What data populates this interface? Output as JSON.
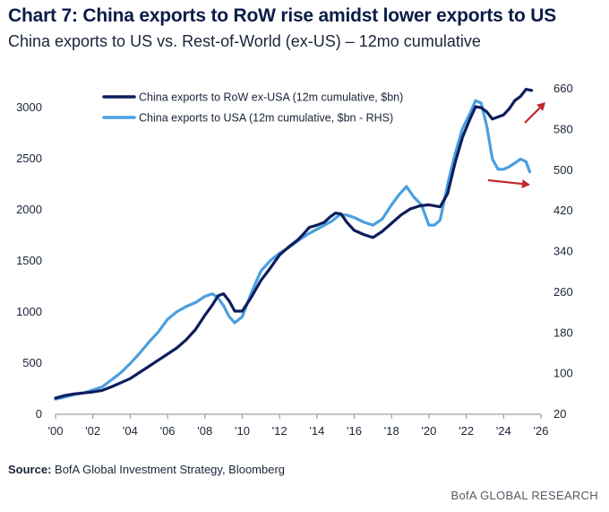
{
  "title": "Chart 7: China exports to RoW rise amidst lower exports to US",
  "subtitle": "China exports to US vs. Rest-of-World (ex-US) – 12mo cumulative",
  "source_label": "Source:",
  "source_text": "BofA Global Investment Strategy, Bloomberg",
  "footer": "BofA GLOBAL RESEARCH",
  "colors": {
    "row": "#0e1d5c",
    "usa": "#4a9fe0",
    "arrow": "#c0282d",
    "axis": "#888888"
  },
  "chart_data": {
    "type": "line",
    "x_tick_labels": [
      "'00",
      "'02",
      "'04",
      "'06",
      "'08",
      "'10",
      "'12",
      "'14",
      "'16",
      "'18",
      "'20",
      "'22",
      "'24",
      "'26"
    ],
    "x_tick_values": [
      2000,
      2002,
      2004,
      2006,
      2008,
      2010,
      2012,
      2014,
      2016,
      2018,
      2020,
      2022,
      2024,
      2026
    ],
    "xlim": [
      2000,
      2026
    ],
    "left_axis": {
      "ylim": [
        0,
        3000
      ],
      "ticks": [
        0,
        500,
        1000,
        1500,
        2000,
        2500,
        3000
      ]
    },
    "right_axis": {
      "ylim": [
        20,
        660
      ],
      "ticks": [
        20,
        100,
        180,
        260,
        340,
        420,
        500,
        580,
        660
      ]
    },
    "series": [
      {
        "name": "China exports to RoW ex-USA (12m cumulative, $bn)",
        "axis": "left",
        "x": [
          2000,
          2000.5,
          2001,
          2001.5,
          2002,
          2002.5,
          2003,
          2003.5,
          2004,
          2004.5,
          2005,
          2005.5,
          2006,
          2006.5,
          2007,
          2007.5,
          2008,
          2008.4,
          2008.7,
          2009,
          2009.3,
          2009.6,
          2010,
          2010.5,
          2011,
          2011.5,
          2012,
          2012.5,
          2013,
          2013.3,
          2013.6,
          2014,
          2014.4,
          2014.7,
          2015,
          2015.3,
          2015.6,
          2016,
          2016.5,
          2017,
          2017.5,
          2018,
          2018.5,
          2019,
          2019.5,
          2020,
          2020.3,
          2020.6,
          2021,
          2021.4,
          2021.8,
          2022.2,
          2022.5,
          2022.8,
          2023.1,
          2023.4,
          2023.7,
          2024,
          2024.3,
          2024.6,
          2024.9,
          2025.2,
          2025.5
        ],
        "values": [
          150,
          175,
          190,
          200,
          210,
          225,
          260,
          300,
          340,
          400,
          460,
          520,
          580,
          640,
          720,
          820,
          960,
          1060,
          1150,
          1170,
          1100,
          1000,
          1000,
          1140,
          1300,
          1420,
          1550,
          1630,
          1700,
          1760,
          1820,
          1840,
          1870,
          1920,
          1960,
          1950,
          1870,
          1790,
          1750,
          1720,
          1780,
          1860,
          1940,
          2000,
          2030,
          2040,
          2030,
          2020,
          2150,
          2450,
          2700,
          2880,
          3000,
          2990,
          2950,
          2880,
          2900,
          2920,
          2980,
          3060,
          3100,
          3170,
          3160
        ]
      },
      {
        "name": "China exports to USA (12m cumulative, $bn - RHS)",
        "axis": "right",
        "x": [
          2000,
          2000.5,
          2001,
          2001.5,
          2002,
          2002.5,
          2003,
          2003.5,
          2004,
          2004.5,
          2005,
          2005.5,
          2006,
          2006.5,
          2007,
          2007.5,
          2008,
          2008.4,
          2008.7,
          2009,
          2009.3,
          2009.6,
          2010,
          2010.5,
          2011,
          2011.5,
          2012,
          2012.5,
          2013,
          2013.5,
          2014,
          2014.4,
          2014.8,
          2015.2,
          2015.6,
          2016,
          2016.5,
          2017,
          2017.5,
          2018,
          2018.4,
          2018.8,
          2019.2,
          2019.6,
          2020,
          2020.3,
          2020.6,
          2021,
          2021.4,
          2021.8,
          2022.2,
          2022.5,
          2022.8,
          2023.1,
          2023.4,
          2023.7,
          2024,
          2024.3,
          2024.6,
          2024.9,
          2025.2,
          2025.4
        ],
        "values": [
          48,
          52,
          57,
          60,
          66,
          72,
          86,
          100,
          118,
          138,
          160,
          180,
          205,
          220,
          230,
          238,
          250,
          255,
          247,
          232,
          210,
          198,
          210,
          258,
          300,
          320,
          335,
          346,
          360,
          372,
          382,
          390,
          398,
          410,
          410,
          405,
          396,
          390,
          402,
          430,
          450,
          466,
          445,
          430,
          390,
          390,
          400,
          470,
          530,
          580,
          610,
          635,
          630,
          585,
          520,
          500,
          500,
          505,
          512,
          520,
          515,
          495
        ]
      }
    ],
    "legend": [
      "China exports to RoW ex-USA (12m cumulative, $bn)",
      "China exports to USA (12m cumulative, $bn - RHS)"
    ],
    "annotations": [
      "red arrow pointing up at end of RoW series",
      "red arrow pointing down at end of USA series"
    ]
  }
}
